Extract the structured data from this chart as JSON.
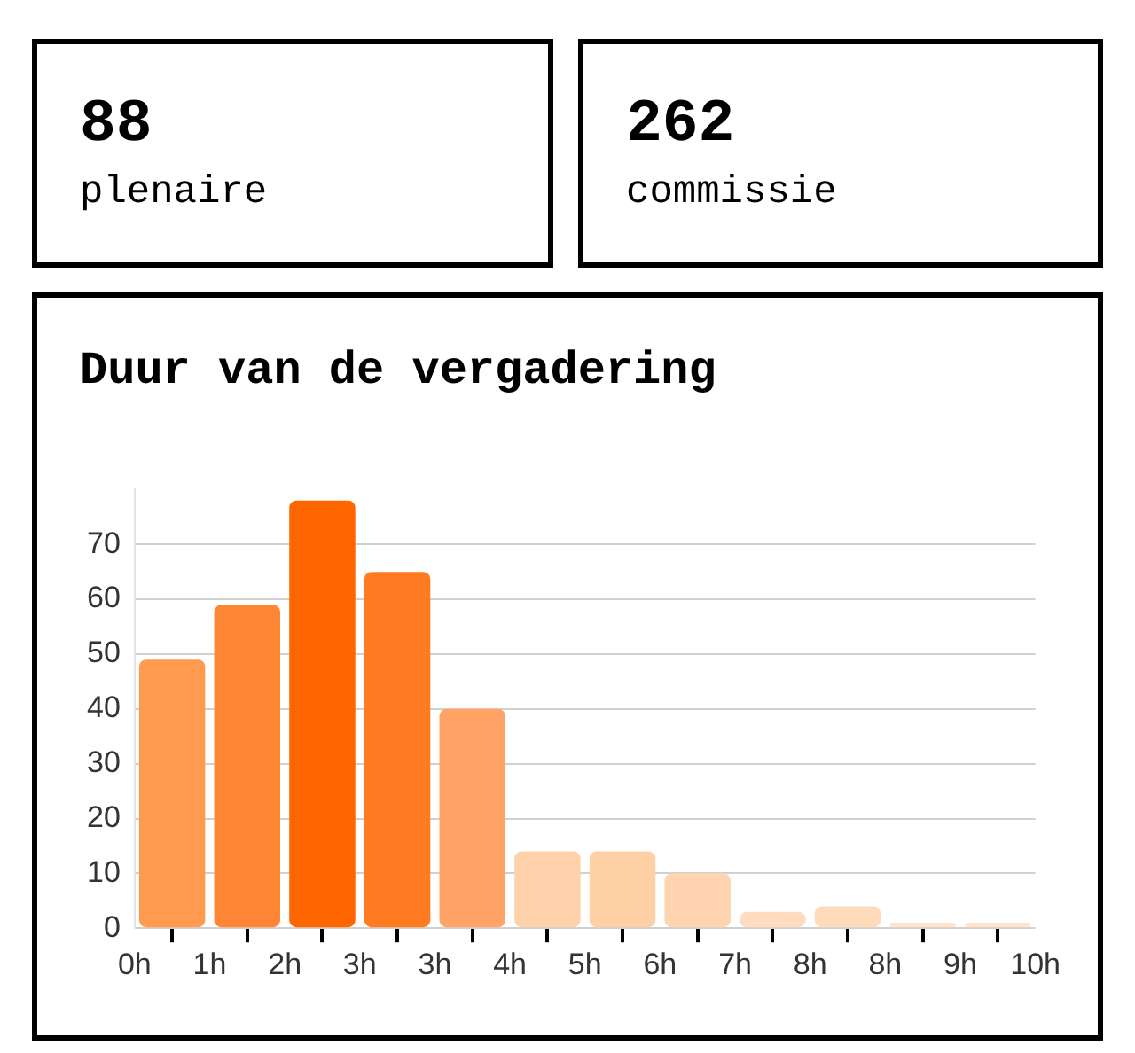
{
  "chart_data": [
    {
      "type": "other",
      "title": "88",
      "subtitle": "plenaire"
    },
    {
      "type": "other",
      "title": "262",
      "subtitle": "commissie"
    },
    {
      "type": "histogram",
      "title": "Duur van de vergadering",
      "bins": [
        0,
        0.833,
        1.667,
        2.5,
        3.333,
        4.167,
        5,
        5.833,
        6.667,
        7.5,
        8.333,
        9.167,
        10
      ],
      "values": [
        49,
        59,
        78,
        65,
        40,
        14,
        14,
        10,
        3,
        4,
        1,
        1
      ],
      "colors": [
        "#ff9a4f",
        "#ff8634",
        "#ff6600",
        "#ff7b22",
        "#ffa466",
        "#ffd2ac",
        "#ffcfa6",
        "#ffd4b1",
        "#ffdcc0",
        "#ffdabb",
        "#ffe3cd",
        "#ffe3cd"
      ],
      "xlim": [
        0,
        10
      ],
      "xticks": [
        {
          "value": 0,
          "label": "0h"
        },
        {
          "value": 0.833,
          "label": "1h"
        },
        {
          "value": 1.667,
          "label": "2h"
        },
        {
          "value": 2.5,
          "label": "3h"
        },
        {
          "value": 3.333,
          "label": "3h"
        },
        {
          "value": 4.167,
          "label": "4h"
        },
        {
          "value": 5,
          "label": "5h"
        },
        {
          "value": 5.833,
          "label": "6h"
        },
        {
          "value": 6.667,
          "label": "7h"
        },
        {
          "value": 7.5,
          "label": "8h"
        },
        {
          "value": 8.333,
          "label": "8h"
        },
        {
          "value": 9.167,
          "label": "9h"
        },
        {
          "value": 10,
          "label": "10h"
        }
      ],
      "ylim": [
        0,
        80
      ],
      "yticks": [
        0,
        10,
        20,
        30,
        40,
        50,
        60,
        70
      ],
      "grid": "y",
      "legend": false
    }
  ]
}
